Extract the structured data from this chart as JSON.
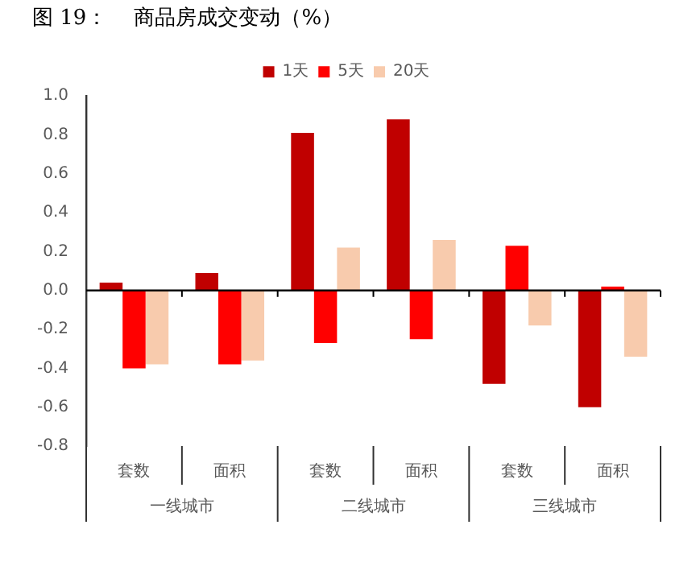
{
  "chart_data": {
    "type": "bar",
    "title": "图 19：    商品房成交变动（%）",
    "categories": [
      "套数",
      "面积",
      "套数",
      "面积",
      "套数",
      "面积"
    ],
    "series": [
      {
        "name": "1天",
        "color": "#c00000",
        "values": [
          0.04,
          0.09,
          0.81,
          0.88,
          -0.48,
          -0.6
        ]
      },
      {
        "name": "5天",
        "color": "#ff0000",
        "values": [
          -0.4,
          -0.38,
          -0.27,
          -0.25,
          0.23,
          0.02
        ]
      },
      {
        "name": "20天",
        "color": "#f8cbad",
        "values": [
          -0.38,
          -0.36,
          0.22,
          0.26,
          -0.18,
          -0.34
        ]
      }
    ],
    "annotations": [
      "一线城市",
      "二线城市",
      "三线城市"
    ],
    "ylim": [
      -0.8,
      1.0
    ],
    "yticks": [
      {
        "value": -0.8,
        "label": "-0.8"
      },
      {
        "value": -0.6,
        "label": "-0.6"
      },
      {
        "value": -0.4,
        "label": "-0.4"
      },
      {
        "value": -0.2,
        "label": "-0.2"
      },
      {
        "value": 0,
        "label": "0.0"
      },
      {
        "value": 0.2,
        "label": "0.2"
      },
      {
        "value": 0.4,
        "label": "0.4"
      },
      {
        "value": 0.6,
        "label": "0.6"
      },
      {
        "value": 0.8,
        "label": "0.8"
      },
      {
        "value": 1,
        "label": "1.0"
      }
    ],
    "ref_lines": [
      {
        "axis": "y",
        "value": 0,
        "color": "#000000",
        "line_style": "solid"
      }
    ],
    "legend": "top"
  }
}
